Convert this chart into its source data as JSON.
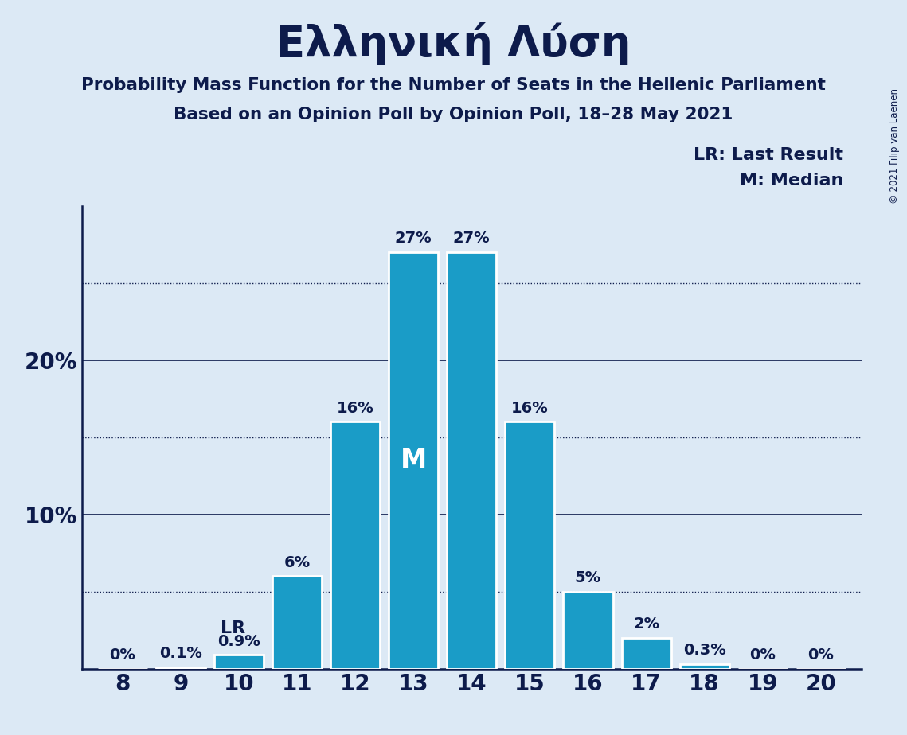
{
  "title": "Ελληνική Λύση",
  "subtitle1": "Probability Mass Function for the Number of Seats in the Hellenic Parliament",
  "subtitle2": "Based on an Opinion Poll by Opinion Poll, 18–28 May 2021",
  "copyright": "© 2021 Filip van Laenen",
  "categories": [
    8,
    9,
    10,
    11,
    12,
    13,
    14,
    15,
    16,
    17,
    18,
    19,
    20
  ],
  "values": [
    0.0,
    0.1,
    0.9,
    6.0,
    16.0,
    27.0,
    27.0,
    16.0,
    5.0,
    2.0,
    0.3,
    0.0,
    0.0
  ],
  "labels": [
    "0%",
    "0.1%",
    "0.9%",
    "6%",
    "16%",
    "27%",
    "27%",
    "16%",
    "5%",
    "2%",
    "0.3%",
    "0%",
    "0%"
  ],
  "bar_color": "#1a9cc7",
  "background_color": "#dce9f5",
  "text_color": "#0d1b4b",
  "bar_edge_color": "#ffffff",
  "lr_seat": 10,
  "median_seat": 13,
  "ylim": [
    0,
    30
  ],
  "solid_gridlines": [
    10,
    20
  ],
  "dotted_gridlines": [
    5,
    15,
    25
  ],
  "ytick_values": [
    0,
    10,
    20
  ],
  "ytick_labels": [
    "",
    "10%",
    "20%"
  ],
  "legend_lr": "LR: Last Result",
  "legend_m": "M: Median"
}
